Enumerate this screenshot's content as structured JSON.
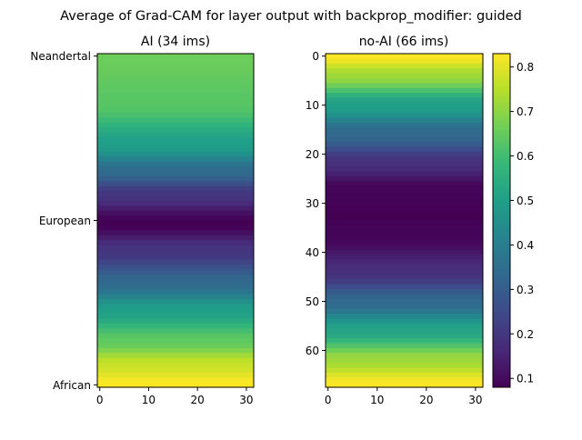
{
  "suptitle": "Average of Grad-CAM for layer output with backprop_modifier: guided",
  "colors": {
    "viridis": [
      "#440154",
      "#482878",
      "#3e4989",
      "#31688e",
      "#26828e",
      "#1f9e89",
      "#35b779",
      "#6ece58",
      "#b5de2b",
      "#fde725"
    ]
  },
  "chart_data": [
    {
      "type": "heatmap",
      "title": "AI (34 ims)",
      "x": {
        "min": 0,
        "max": 31,
        "ticks": [
          "0",
          "10",
          "20",
          "30"
        ]
      },
      "y": {
        "ticks": [
          "Neandertal",
          "European",
          "African"
        ],
        "tick_rows": [
          0,
          33.5,
          67
        ],
        "rows": 68
      },
      "row_profile": {
        "description_free": true,
        "knots_row": [
          0,
          10,
          18,
          24,
          28,
          34,
          40,
          46,
          52,
          58,
          63,
          67
        ],
        "knots_value": [
          0.66,
          0.63,
          0.5,
          0.33,
          0.2,
          0.08,
          0.2,
          0.33,
          0.5,
          0.64,
          0.77,
          0.83
        ]
      }
    },
    {
      "type": "heatmap",
      "title": "no-AI (66 ims)",
      "x": {
        "min": 0,
        "max": 31,
        "ticks": [
          "0",
          "10",
          "20",
          "30"
        ]
      },
      "y": {
        "ticks": [
          "0",
          "10",
          "20",
          "30",
          "40",
          "50",
          "60"
        ],
        "tick_rows": [
          0,
          10,
          20,
          30,
          40,
          50,
          60
        ],
        "rows": 68
      },
      "row_profile": {
        "knots_row": [
          0,
          4,
          10,
          16,
          22,
          27,
          32,
          37,
          44,
          50,
          56,
          62,
          67
        ],
        "knots_value": [
          0.83,
          0.72,
          0.5,
          0.33,
          0.18,
          0.09,
          0.08,
          0.09,
          0.18,
          0.33,
          0.52,
          0.72,
          0.83
        ]
      }
    }
  ],
  "colorbar": {
    "min": 0.08,
    "max": 0.83,
    "ticks": [
      "0.1",
      "0.2",
      "0.3",
      "0.4",
      "0.5",
      "0.6",
      "0.7",
      "0.8"
    ],
    "tick_values": [
      0.1,
      0.2,
      0.3,
      0.4,
      0.5,
      0.6,
      0.7,
      0.8
    ]
  }
}
